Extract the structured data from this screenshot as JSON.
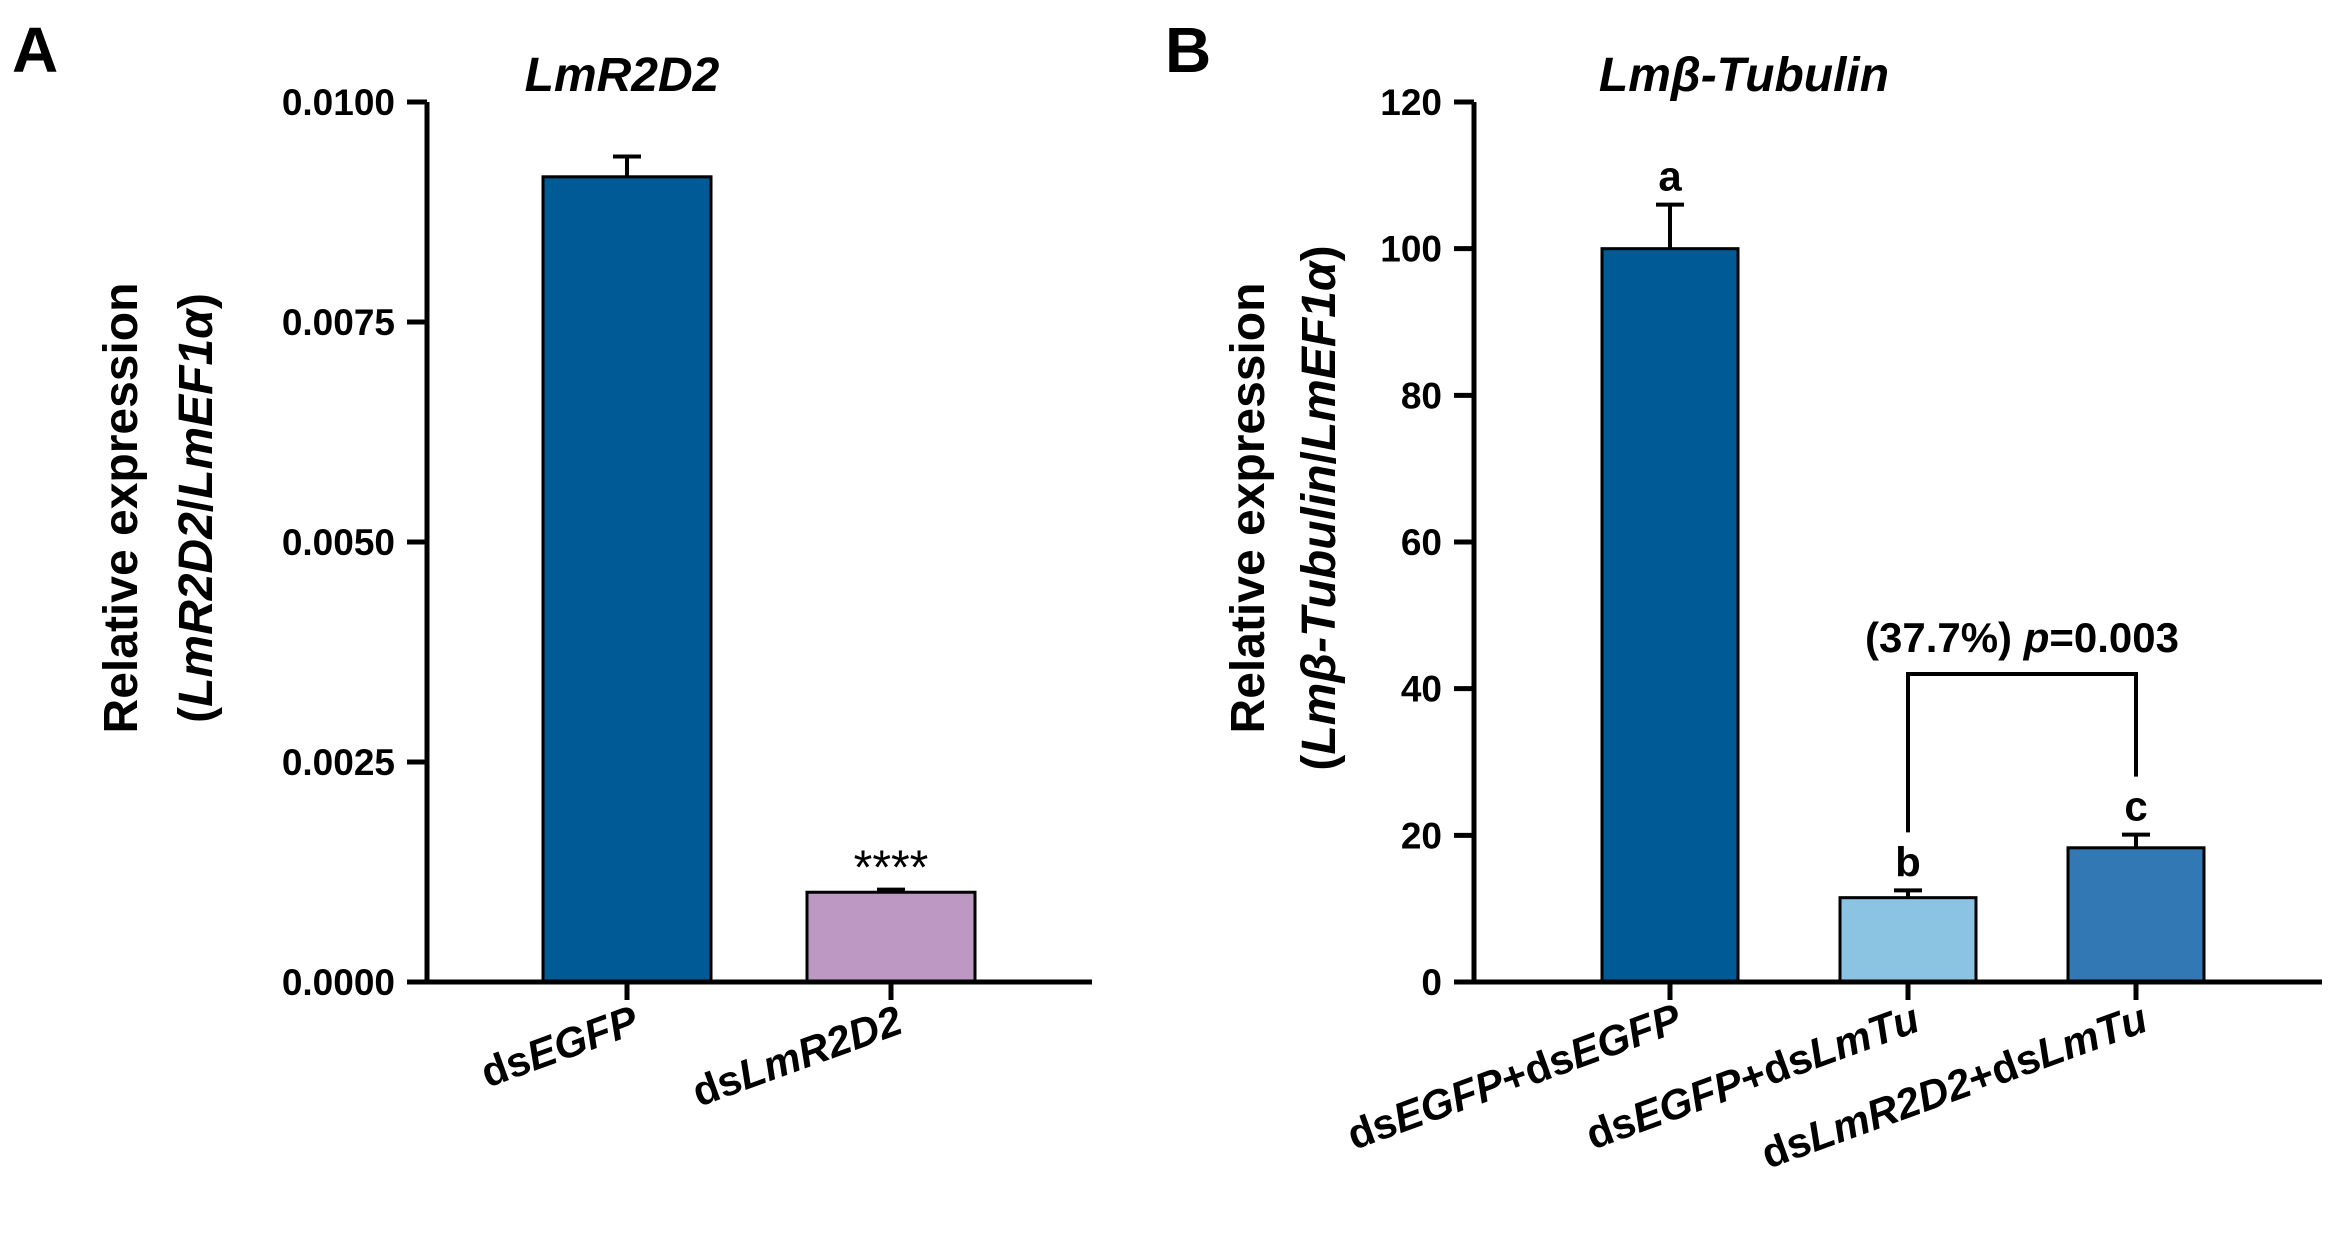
{
  "colors": {
    "axis": "#000000",
    "bar_dark_blue": "#005A96",
    "bar_purple": "#BC98C3",
    "bar_light_blue": "#8BC3E3",
    "bar_mid_blue": "#3278B4"
  },
  "chart_data": [
    {
      "type": "bar",
      "panel_label": "A",
      "title": "LmR2D2",
      "ylabel_line1": "Relative expression",
      "ylabel_line2_parts": [
        "(",
        "LmR2D2",
        "/",
        "LmEF1α",
        ")"
      ],
      "xlabel": "",
      "ylim": [
        0,
        0.01
      ],
      "y_ticks": [
        0.0,
        0.0025,
        0.005,
        0.0075,
        0.01
      ],
      "y_tick_labels": [
        "0.0000",
        "0.0025",
        "0.0050",
        "0.0075",
        "0.0100"
      ],
      "categories": [
        {
          "parts": [
            {
              "t": "ds",
              "i": false
            },
            {
              "t": "EGFP",
              "i": true
            }
          ]
        },
        {
          "parts": [
            {
              "t": "ds",
              "i": false
            },
            {
              "t": "LmR2D2",
              "i": true
            }
          ]
        }
      ],
      "values": [
        0.00915,
        0.00102
      ],
      "errors": [
        0.00023,
        3e-05
      ],
      "bar_colors": [
        "#005A96",
        "#BC98C3"
      ],
      "annotations": [
        "",
        "****"
      ]
    },
    {
      "type": "bar",
      "panel_label": "B",
      "title": "Lmβ-Tubulin",
      "ylabel_line1": "Relative expression",
      "ylabel_line2_parts": [
        "(",
        "Lmβ-Tubulin",
        "/",
        "LmEF1α",
        ")"
      ],
      "xlabel": "",
      "ylim": [
        0,
        120
      ],
      "y_ticks": [
        0,
        20,
        40,
        60,
        80,
        100,
        120
      ],
      "y_tick_labels": [
        "0",
        "20",
        "40",
        "60",
        "80",
        "100",
        "120"
      ],
      "categories": [
        {
          "parts": [
            {
              "t": "ds",
              "i": false
            },
            {
              "t": "EGFP",
              "i": true
            },
            {
              "t": "+ds",
              "i": false
            },
            {
              "t": "EGFP",
              "i": true
            }
          ]
        },
        {
          "parts": [
            {
              "t": "ds",
              "i": false
            },
            {
              "t": "EGFP",
              "i": true
            },
            {
              "t": "+ds",
              "i": false
            },
            {
              "t": "LmTu",
              "i": true
            }
          ]
        },
        {
          "parts": [
            {
              "t": "ds",
              "i": false
            },
            {
              "t": "LmR2D2",
              "i": true
            },
            {
              "t": "+ds",
              "i": false
            },
            {
              "t": "LmTu",
              "i": true
            }
          ]
        }
      ],
      "values": [
        100.0,
        11.5,
        18.3
      ],
      "errors": [
        6.0,
        1.0,
        1.8
      ],
      "bar_colors": [
        "#005A96",
        "#8BC3E3",
        "#3278B4"
      ],
      "annotations": [
        "a",
        "b",
        "c"
      ],
      "comparison": {
        "from_bar": 1,
        "to_bar": 2,
        "bracket_at": 42,
        "label_parts": [
          {
            "t": "(37.7%) ",
            "i": false
          },
          {
            "t": "p",
            "i": true
          },
          {
            "t": "=0.003",
            "i": false
          }
        ]
      }
    }
  ]
}
